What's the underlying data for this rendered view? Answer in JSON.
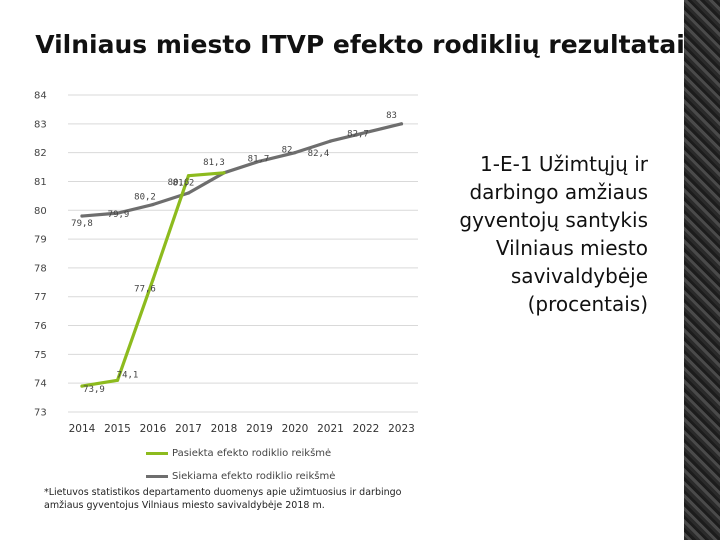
{
  "title": "Vilniaus miesto ITVP efekto rodiklių rezultatai",
  "side_caption": "1-E-1 Užimtųjų ir darbingo amžiaus gyventojų santykis Vilniaus miesto savivaldybėje (procentais)",
  "footnote": "*Lietuvos statistikos departamento duomenys apie užimtuosius ir darbingo amžiaus gyventojus Vilniaus miesto savivaldybėje 2018 m.",
  "colors": {
    "achieved": "#8dbb1e",
    "target": "#6e6e6e",
    "grid": "#d9d9d9",
    "right_edge": "texture-dark"
  },
  "chart_data": {
    "type": "line",
    "title": "",
    "xlabel": "",
    "ylabel": "",
    "ylim": [
      73,
      84
    ],
    "yticks": [
      73,
      74,
      75,
      76,
      77,
      78,
      79,
      80,
      81,
      82,
      83,
      84
    ],
    "x": [
      2014,
      2015,
      2016,
      2017,
      2018,
      2019,
      2020,
      2021,
      2022,
      2023
    ],
    "grid": true,
    "legend_position": "bottom",
    "series": [
      {
        "name": "Pasiekta efekto rodiklio reikšmė",
        "x": [
          2014,
          2015,
          2016,
          2017,
          2018
        ],
        "values": [
          73.9,
          74.1,
          77.6,
          81.2,
          81.3
        ],
        "labels": [
          "73,9",
          "74,1",
          "77,6",
          "81,2",
          ""
        ]
      },
      {
        "name": "Siekiama efekto rodiklio reikšmė",
        "x": [
          2014,
          2015,
          2016,
          2017,
          2018,
          2019,
          2020,
          2021,
          2022,
          2023
        ],
        "values": [
          79.8,
          79.9,
          80.2,
          80.6,
          81.3,
          81.7,
          82,
          82.4,
          82.7,
          83
        ],
        "labels": [
          "79,8",
          "79,9",
          "80,2",
          "80,6",
          "81,3",
          "81,7",
          "82",
          "82,4",
          "82,7",
          "83"
        ]
      }
    ]
  }
}
